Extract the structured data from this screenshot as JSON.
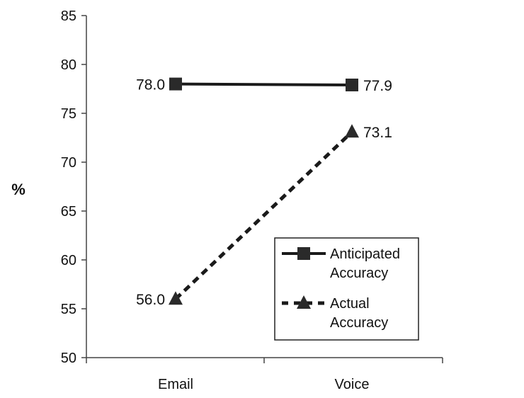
{
  "chart_data": {
    "type": "line",
    "categories": [
      "Email",
      "Voice"
    ],
    "ylabel": "%",
    "xlabel": "",
    "title": "",
    "ylim": [
      50,
      85
    ],
    "yticks": [
      "50",
      "55",
      "60",
      "65",
      "70",
      "75",
      "80",
      "85"
    ],
    "grid": false,
    "legend_position": "bottom-right",
    "series": [
      {
        "name": "Anticipated Accuracy",
        "legend_lines": [
          "Anticipated",
          "Accuracy"
        ],
        "values": [
          78.0,
          77.9
        ],
        "labels": [
          "78.0",
          "77.9"
        ],
        "marker": "square",
        "line_style": "solid",
        "color": "#1a1a1a"
      },
      {
        "name": "Actual Accuracy",
        "legend_lines": [
          "Actual",
          "Accuracy"
        ],
        "values": [
          56.0,
          73.1
        ],
        "labels": [
          "56.0",
          "73.1"
        ],
        "marker": "triangle",
        "line_style": "dashed",
        "color": "#1a1a1a"
      }
    ]
  }
}
